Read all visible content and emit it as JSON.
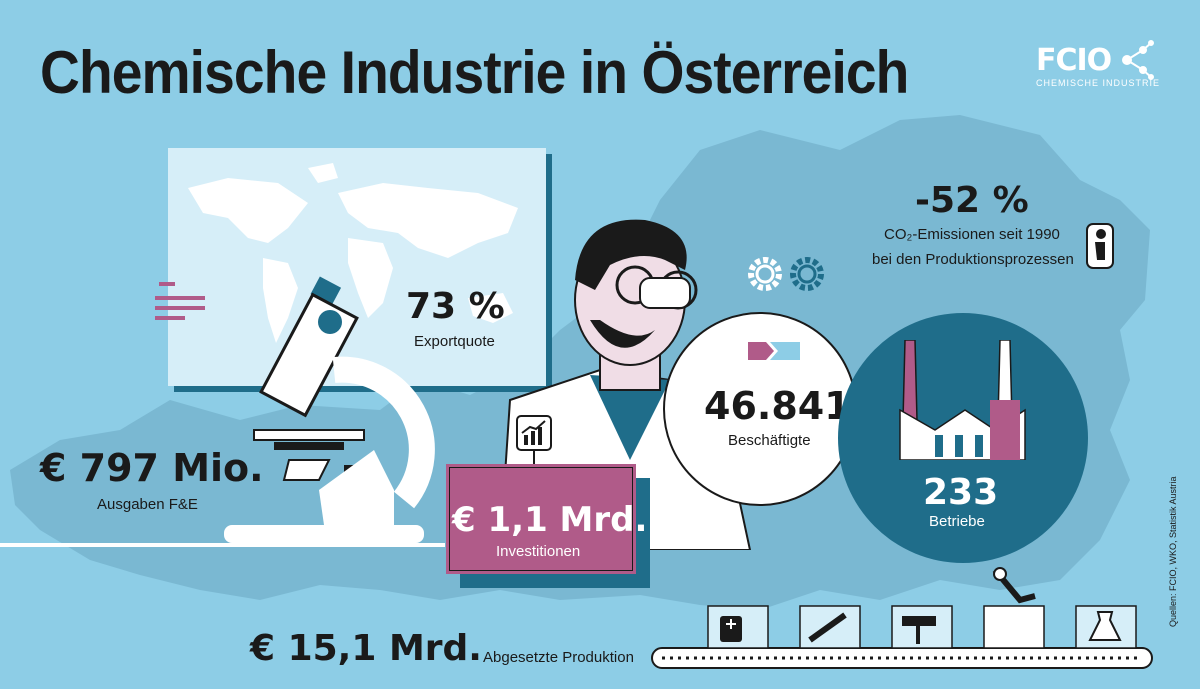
{
  "header": {
    "title": "Chemische Industrie in Österreich",
    "logo_mark": "FCIO",
    "logo_sub": "CHEMISCHE INDUSTRIE"
  },
  "stats": {
    "export_value": "73 %",
    "export_label": "Exportquote",
    "co2_value": "-52 %",
    "co2_label_1": "CO₂-Emissionen seit 1990",
    "co2_label_2": "bei den Produktionsprozessen",
    "rd_value": "€ 797 Mio.",
    "rd_label": "Ausgaben F&E",
    "invest_value": "€ 1,1 Mrd.",
    "invest_label": "Investitionen",
    "employees_value": "46.841",
    "employees_label": "Beschäftigte",
    "businesses_value": "233",
    "businesses_label": "Betriebe",
    "production_value": "€ 15,1 Mrd.",
    "production_label": "Abgesetzte Produktion"
  },
  "sources": "Quellen: FCIO, WKO, Statistik Austria",
  "colors": {
    "background": "#8dcde6",
    "austria_map": "#7ab8d2",
    "dark_teal": "#1f6d8a",
    "magenta": "#b05b89",
    "text": "#1a1a1a"
  },
  "icons": [
    "world-map-icon",
    "microscope-icon",
    "scientist-icon",
    "gears-icon",
    "info-icon",
    "factory-icon",
    "growth-chart-icon",
    "conveyor-belt-icon",
    "medicine-box-icon",
    "syringe-icon",
    "paint-roller-icon",
    "flask-icon",
    "robot-arm-icon"
  ]
}
